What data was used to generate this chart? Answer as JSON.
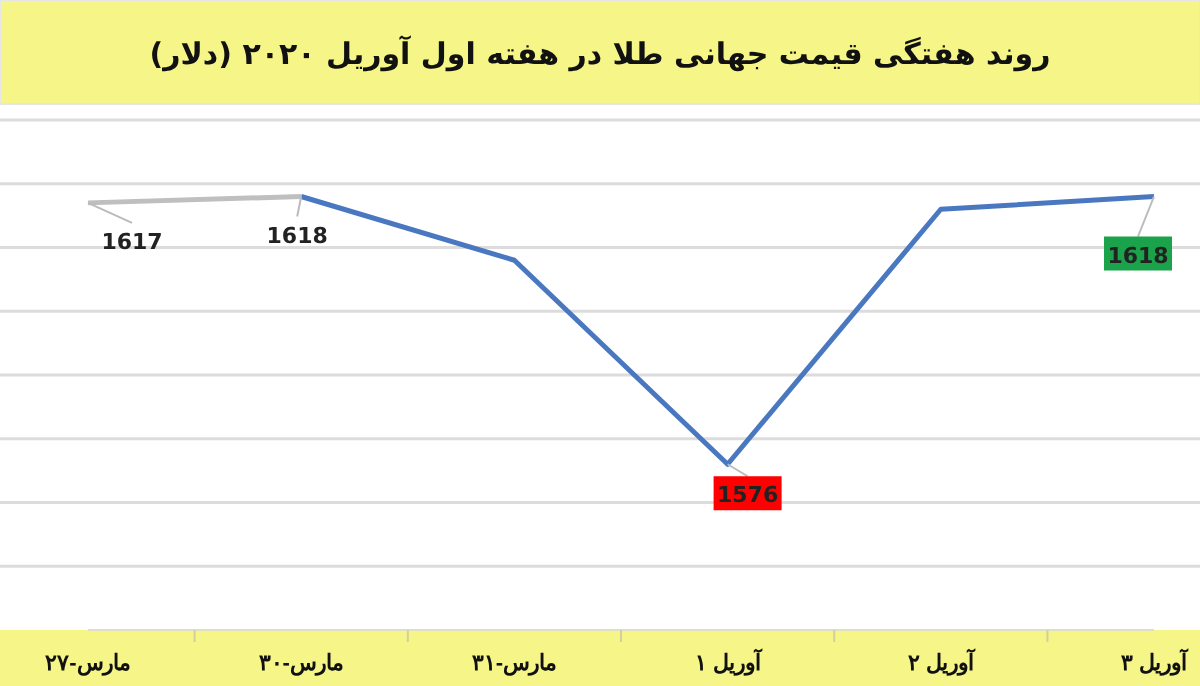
{
  "chart_data": {
    "type": "line",
    "title": "روند هفتگی قیمت جهانی طلا در هفته اول آوریل ۲۰۲۰ (دلار)",
    "categories": [
      "مارس-۲۷",
      "مارس-۳۰",
      "مارس-۳۱",
      "آوریل ۱",
      "آوریل ۲",
      "آوریل ۳"
    ],
    "series": [
      {
        "color": "#bfbfbf",
        "values": [
          1617,
          1618,
          null,
          null,
          null,
          null
        ],
        "value_labels": [
          "1617",
          "1618",
          null,
          null,
          null,
          null
        ]
      },
      {
        "color": "#4a78c0",
        "values": [
          null,
          1618,
          1608,
          1576,
          1616,
          1618
        ],
        "value_labels": [
          null,
          null,
          null,
          "1576",
          null,
          "1618"
        ]
      }
    ],
    "ylim": [
      1550,
      1630
    ],
    "yticks": [
      {
        "value": 1560,
        "label": null
      },
      {
        "value": 1570,
        "label": null
      },
      {
        "value": 1580,
        "label": null
      },
      {
        "value": 1590,
        "label": null
      },
      {
        "value": 1600,
        "label": null
      },
      {
        "value": 1610,
        "label": null
      },
      {
        "value": 1620,
        "label": null
      },
      {
        "value": 1630,
        "label": null
      }
    ],
    "tick_labels": "x",
    "grid": "y",
    "marker": "none",
    "line_style": "solid"
  }
}
